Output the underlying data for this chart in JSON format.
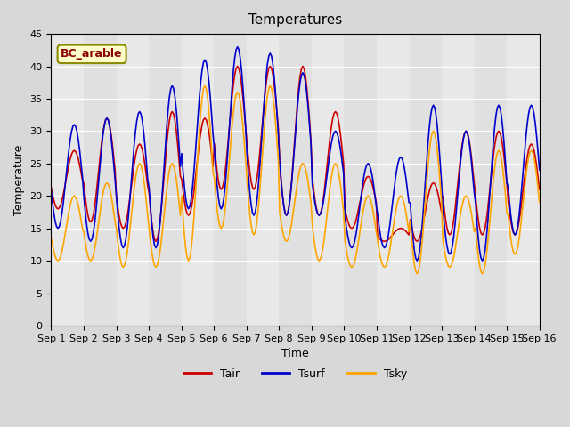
{
  "title": "Temperatures",
  "xlabel": "Time",
  "ylabel": "Temperature",
  "ylim": [
    0,
    45
  ],
  "annotation": "BC_arable",
  "line_colors": {
    "Tair": "#cc0000",
    "Tsurf": "#0000cc",
    "Tsky": "#ffa500"
  },
  "x_tick_labels": [
    "Sep 1",
    "Sep 2",
    "Sep 3",
    "Sep 4",
    "Sep 5",
    "Sep 6",
    "Sep 7",
    "Sep 8",
    "Sep 9",
    "Sep 10",
    "Sep 11",
    "Sep 12",
    "Sep 13",
    "Sep 14",
    "Sep 15",
    "Sep 16"
  ],
  "bg_color": "#e8e8e8",
  "plot_bg": "#f0f0f0",
  "days": 15,
  "pts_per_day": 24,
  "tair_peaks": [
    27,
    32,
    28,
    33,
    32,
    40,
    40,
    40,
    33,
    23,
    15,
    22,
    30,
    30,
    28
  ],
  "tair_mins": [
    18,
    16,
    15,
    13,
    17,
    21,
    21,
    17,
    17,
    15,
    13,
    13,
    14,
    14,
    14
  ],
  "tsurf_peaks": [
    31,
    32,
    33,
    37,
    41,
    43,
    42,
    39,
    30,
    25,
    26,
    34,
    30,
    34,
    34
  ],
  "tsurf_mins": [
    15,
    13,
    12,
    12,
    18,
    18,
    17,
    17,
    17,
    12,
    12,
    10,
    11,
    10,
    14
  ],
  "tsky_peaks": [
    20,
    22,
    25,
    25,
    37,
    36,
    37,
    25,
    25,
    20,
    20,
    30,
    20,
    27,
    27
  ],
  "tsky_mins": [
    10,
    10,
    9,
    9,
    10,
    15,
    14,
    13,
    10,
    9,
    9,
    8,
    9,
    8,
    11
  ],
  "peak_hour": 14,
  "min_hour": 5
}
